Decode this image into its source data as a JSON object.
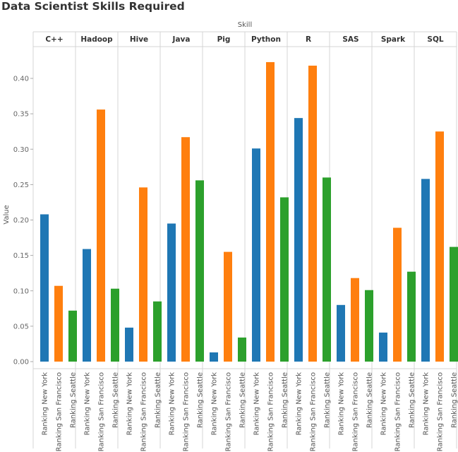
{
  "chart_data": {
    "type": "bar",
    "title": "Data Scientist Skills Required",
    "column_header": "Skill",
    "ylabel": "Value",
    "ylim": [
      0,
      0.44
    ],
    "yticks": [
      "0.00",
      "0.05",
      "0.10",
      "0.15",
      "0.20",
      "0.25",
      "0.30",
      "0.35",
      "0.40"
    ],
    "categories": [
      "Ranking New York",
      "Ranking San Francisco",
      "Ranking Seattle"
    ],
    "groups": [
      {
        "name": "C++",
        "values": [
          0.208,
          0.107,
          0.072
        ]
      },
      {
        "name": "Hadoop",
        "values": [
          0.159,
          0.356,
          0.103
        ]
      },
      {
        "name": "Hive",
        "values": [
          0.048,
          0.246,
          0.085
        ]
      },
      {
        "name": "Java",
        "values": [
          0.195,
          0.317,
          0.256
        ]
      },
      {
        "name": "Pig",
        "values": [
          0.013,
          0.155,
          0.034
        ]
      },
      {
        "name": "Python",
        "values": [
          0.301,
          0.423,
          0.232
        ]
      },
      {
        "name": "R",
        "values": [
          0.344,
          0.418,
          0.26
        ]
      },
      {
        "name": "SAS",
        "values": [
          0.08,
          0.118,
          0.101
        ]
      },
      {
        "name": "Spark",
        "values": [
          0.041,
          0.189,
          0.127
        ]
      },
      {
        "name": "SQL",
        "values": [
          0.258,
          0.325,
          0.162
        ]
      }
    ],
    "colors": [
      "#1f77b4",
      "#ff7f0e",
      "#2ca02c"
    ],
    "grid": false
  }
}
